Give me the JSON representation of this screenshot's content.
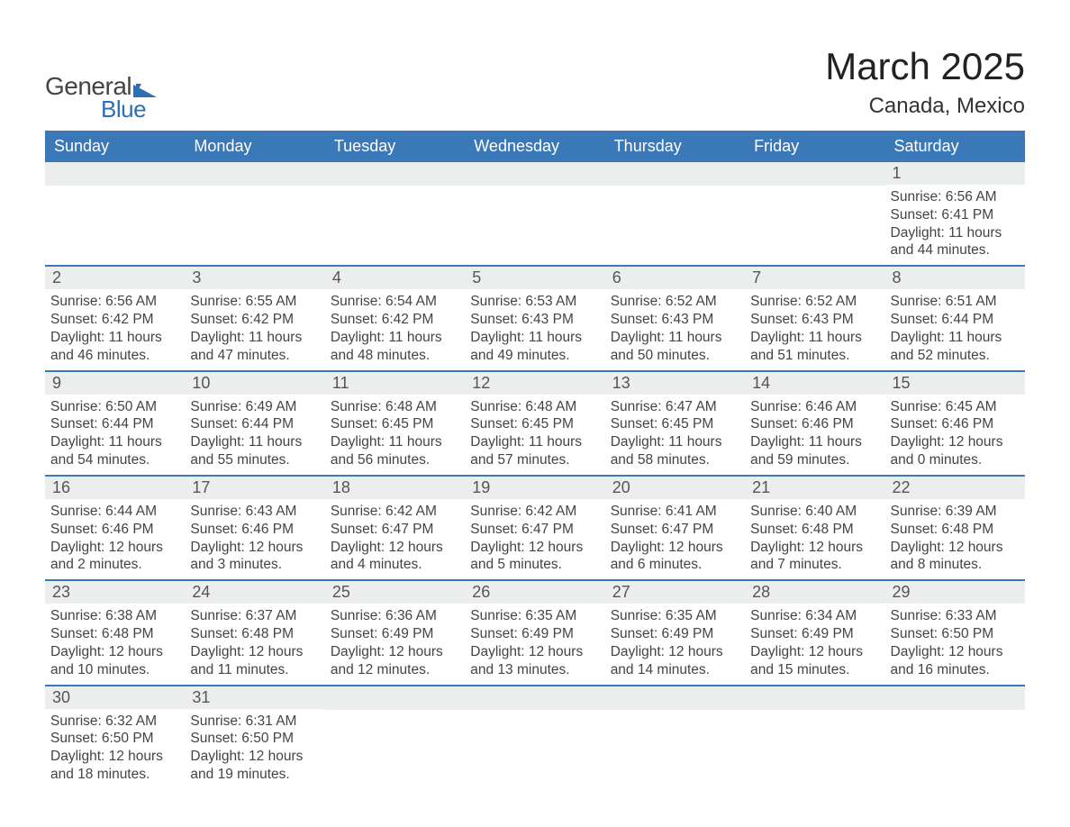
{
  "logo": {
    "text1": "General",
    "text2": "Blue",
    "brand_color": "#2d6fb4"
  },
  "title": "March 2025",
  "subtitle": "Canada, Mexico",
  "colors": {
    "header_bg": "#3a78b8",
    "header_text": "#ffffff",
    "daynum_bg": "#eceded",
    "daynum_text": "#555555",
    "body_text": "#444444",
    "week_divider": "#3a78b8"
  },
  "fonts": {
    "main_title_pt": 42,
    "sub_title_pt": 24,
    "header_cell_pt": 18,
    "daynum_pt": 18,
    "body_pt": 15.5
  },
  "day_headers": [
    "Sunday",
    "Monday",
    "Tuesday",
    "Wednesday",
    "Thursday",
    "Friday",
    "Saturday"
  ],
  "labels": {
    "sunrise": "Sunrise:",
    "sunset": "Sunset:",
    "daylight": "Daylight:"
  },
  "weeks": [
    [
      {
        "n": "",
        "sr": "",
        "ss": "",
        "dl": ""
      },
      {
        "n": "",
        "sr": "",
        "ss": "",
        "dl": ""
      },
      {
        "n": "",
        "sr": "",
        "ss": "",
        "dl": ""
      },
      {
        "n": "",
        "sr": "",
        "ss": "",
        "dl": ""
      },
      {
        "n": "",
        "sr": "",
        "ss": "",
        "dl": ""
      },
      {
        "n": "",
        "sr": "",
        "ss": "",
        "dl": ""
      },
      {
        "n": "1",
        "sr": "6:56 AM",
        "ss": "6:41 PM",
        "dl": "11 hours and 44 minutes."
      }
    ],
    [
      {
        "n": "2",
        "sr": "6:56 AM",
        "ss": "6:42 PM",
        "dl": "11 hours and 46 minutes."
      },
      {
        "n": "3",
        "sr": "6:55 AM",
        "ss": "6:42 PM",
        "dl": "11 hours and 47 minutes."
      },
      {
        "n": "4",
        "sr": "6:54 AM",
        "ss": "6:42 PM",
        "dl": "11 hours and 48 minutes."
      },
      {
        "n": "5",
        "sr": "6:53 AM",
        "ss": "6:43 PM",
        "dl": "11 hours and 49 minutes."
      },
      {
        "n": "6",
        "sr": "6:52 AM",
        "ss": "6:43 PM",
        "dl": "11 hours and 50 minutes."
      },
      {
        "n": "7",
        "sr": "6:52 AM",
        "ss": "6:43 PM",
        "dl": "11 hours and 51 minutes."
      },
      {
        "n": "8",
        "sr": "6:51 AM",
        "ss": "6:44 PM",
        "dl": "11 hours and 52 minutes."
      }
    ],
    [
      {
        "n": "9",
        "sr": "6:50 AM",
        "ss": "6:44 PM",
        "dl": "11 hours and 54 minutes."
      },
      {
        "n": "10",
        "sr": "6:49 AM",
        "ss": "6:44 PM",
        "dl": "11 hours and 55 minutes."
      },
      {
        "n": "11",
        "sr": "6:48 AM",
        "ss": "6:45 PM",
        "dl": "11 hours and 56 minutes."
      },
      {
        "n": "12",
        "sr": "6:48 AM",
        "ss": "6:45 PM",
        "dl": "11 hours and 57 minutes."
      },
      {
        "n": "13",
        "sr": "6:47 AM",
        "ss": "6:45 PM",
        "dl": "11 hours and 58 minutes."
      },
      {
        "n": "14",
        "sr": "6:46 AM",
        "ss": "6:46 PM",
        "dl": "11 hours and 59 minutes."
      },
      {
        "n": "15",
        "sr": "6:45 AM",
        "ss": "6:46 PM",
        "dl": "12 hours and 0 minutes."
      }
    ],
    [
      {
        "n": "16",
        "sr": "6:44 AM",
        "ss": "6:46 PM",
        "dl": "12 hours and 2 minutes."
      },
      {
        "n": "17",
        "sr": "6:43 AM",
        "ss": "6:46 PM",
        "dl": "12 hours and 3 minutes."
      },
      {
        "n": "18",
        "sr": "6:42 AM",
        "ss": "6:47 PM",
        "dl": "12 hours and 4 minutes."
      },
      {
        "n": "19",
        "sr": "6:42 AM",
        "ss": "6:47 PM",
        "dl": "12 hours and 5 minutes."
      },
      {
        "n": "20",
        "sr": "6:41 AM",
        "ss": "6:47 PM",
        "dl": "12 hours and 6 minutes."
      },
      {
        "n": "21",
        "sr": "6:40 AM",
        "ss": "6:48 PM",
        "dl": "12 hours and 7 minutes."
      },
      {
        "n": "22",
        "sr": "6:39 AM",
        "ss": "6:48 PM",
        "dl": "12 hours and 8 minutes."
      }
    ],
    [
      {
        "n": "23",
        "sr": "6:38 AM",
        "ss": "6:48 PM",
        "dl": "12 hours and 10 minutes."
      },
      {
        "n": "24",
        "sr": "6:37 AM",
        "ss": "6:48 PM",
        "dl": "12 hours and 11 minutes."
      },
      {
        "n": "25",
        "sr": "6:36 AM",
        "ss": "6:49 PM",
        "dl": "12 hours and 12 minutes."
      },
      {
        "n": "26",
        "sr": "6:35 AM",
        "ss": "6:49 PM",
        "dl": "12 hours and 13 minutes."
      },
      {
        "n": "27",
        "sr": "6:35 AM",
        "ss": "6:49 PM",
        "dl": "12 hours and 14 minutes."
      },
      {
        "n": "28",
        "sr": "6:34 AM",
        "ss": "6:49 PM",
        "dl": "12 hours and 15 minutes."
      },
      {
        "n": "29",
        "sr": "6:33 AM",
        "ss": "6:50 PM",
        "dl": "12 hours and 16 minutes."
      }
    ],
    [
      {
        "n": "30",
        "sr": "6:32 AM",
        "ss": "6:50 PM",
        "dl": "12 hours and 18 minutes."
      },
      {
        "n": "31",
        "sr": "6:31 AM",
        "ss": "6:50 PM",
        "dl": "12 hours and 19 minutes."
      },
      {
        "n": "",
        "sr": "",
        "ss": "",
        "dl": ""
      },
      {
        "n": "",
        "sr": "",
        "ss": "",
        "dl": ""
      },
      {
        "n": "",
        "sr": "",
        "ss": "",
        "dl": ""
      },
      {
        "n": "",
        "sr": "",
        "ss": "",
        "dl": ""
      },
      {
        "n": "",
        "sr": "",
        "ss": "",
        "dl": ""
      }
    ]
  ]
}
